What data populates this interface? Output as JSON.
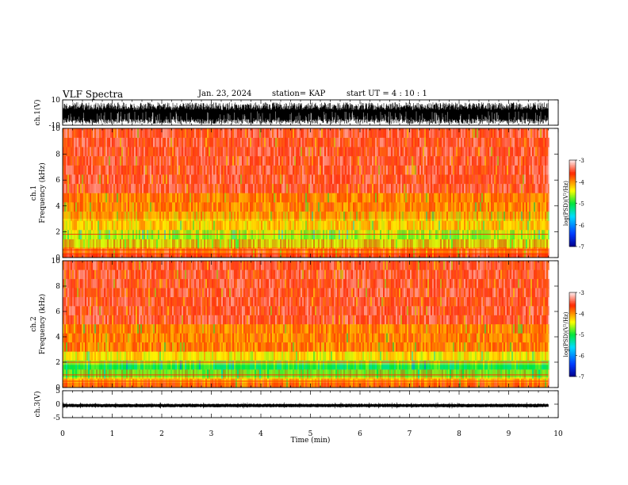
{
  "header": {
    "title": "VLF Spectra",
    "date": "Jan. 23, 2024",
    "station": "station= KAP",
    "start": "start  UT =   4 : 10 : 1"
  },
  "chart_data": [
    {
      "type": "line",
      "name": "ch1-waveform",
      "ylabel": "ch.1(V)",
      "ylim": [
        -10,
        10
      ],
      "yticks": [
        10,
        -10
      ],
      "xlim": [
        0,
        10
      ],
      "x_end": 9.8,
      "envelope_V": [
        -9,
        8
      ]
    },
    {
      "type": "heatmap",
      "name": "ch1-spectrogram",
      "ylabel_line1": "ch.1",
      "ylabel_line2": "Frequency (kHz)",
      "ylim": [
        0,
        10
      ],
      "yticks": [
        0,
        2,
        4,
        6,
        8,
        10
      ],
      "xlim": [
        0,
        10
      ],
      "x_end": 9.8,
      "colorbar": {
        "label": "log(PSD)(V²/Hz)",
        "range": [
          -7,
          -3
        ],
        "ticks": [
          -3,
          -4,
          -5,
          -6,
          -7
        ]
      },
      "bands": [
        {
          "from_khz": 0.0,
          "to_khz": 0.3,
          "log_psd": -3.6
        },
        {
          "from_khz": 0.3,
          "to_khz": 0.8,
          "log_psd": -4.0
        },
        {
          "from_khz": 0.8,
          "to_khz": 1.9,
          "log_psd": -4.6
        },
        {
          "from_khz": 1.9,
          "to_khz": 3.0,
          "log_psd": -4.2
        },
        {
          "from_khz": 3.0,
          "to_khz": 5.0,
          "log_psd": -3.9
        },
        {
          "from_khz": 5.0,
          "to_khz": 10.0,
          "log_psd": -3.5
        }
      ],
      "lines_khz": [
        0.3,
        0.6,
        1.8
      ]
    },
    {
      "type": "heatmap",
      "name": "ch2-spectrogram",
      "ylabel_line1": "ch.2",
      "ylabel_line2": "Frequency (kHz)",
      "ylim": [
        0,
        10
      ],
      "yticks": [
        0,
        2,
        4,
        6,
        8,
        10
      ],
      "xlim": [
        0,
        10
      ],
      "x_end": 9.8,
      "colorbar": {
        "label": "log(PSD)(V²/Hz)",
        "range": [
          -7,
          -3
        ],
        "ticks": [
          -3,
          -4,
          -5,
          -6,
          -7
        ]
      },
      "bands": [
        {
          "from_khz": 0.0,
          "to_khz": 0.4,
          "log_psd": -3.8
        },
        {
          "from_khz": 0.4,
          "to_khz": 0.8,
          "log_psd": -4.3
        },
        {
          "from_khz": 0.8,
          "to_khz": 1.8,
          "log_psd": -5.0
        },
        {
          "from_khz": 1.8,
          "to_khz": 2.8,
          "log_psd": -4.3
        },
        {
          "from_khz": 2.8,
          "to_khz": 5.0,
          "log_psd": -3.9
        },
        {
          "from_khz": 5.0,
          "to_khz": 10.0,
          "log_psd": -3.5
        }
      ],
      "lines_khz": [
        0.5,
        1.0,
        2.0
      ]
    },
    {
      "type": "line",
      "name": "ch3-waveform",
      "ylabel": "ch.3(V)",
      "ylim": [
        -5,
        5
      ],
      "yticks": [
        5,
        0,
        -5
      ],
      "xlim": [
        0,
        10
      ],
      "x_end": 9.8,
      "envelope_V": [
        -1.2,
        0.2
      ],
      "xlabel": "Time (min)",
      "xticks": [
        0,
        1,
        2,
        3,
        4,
        5,
        6,
        7,
        8,
        9,
        10
      ]
    }
  ]
}
